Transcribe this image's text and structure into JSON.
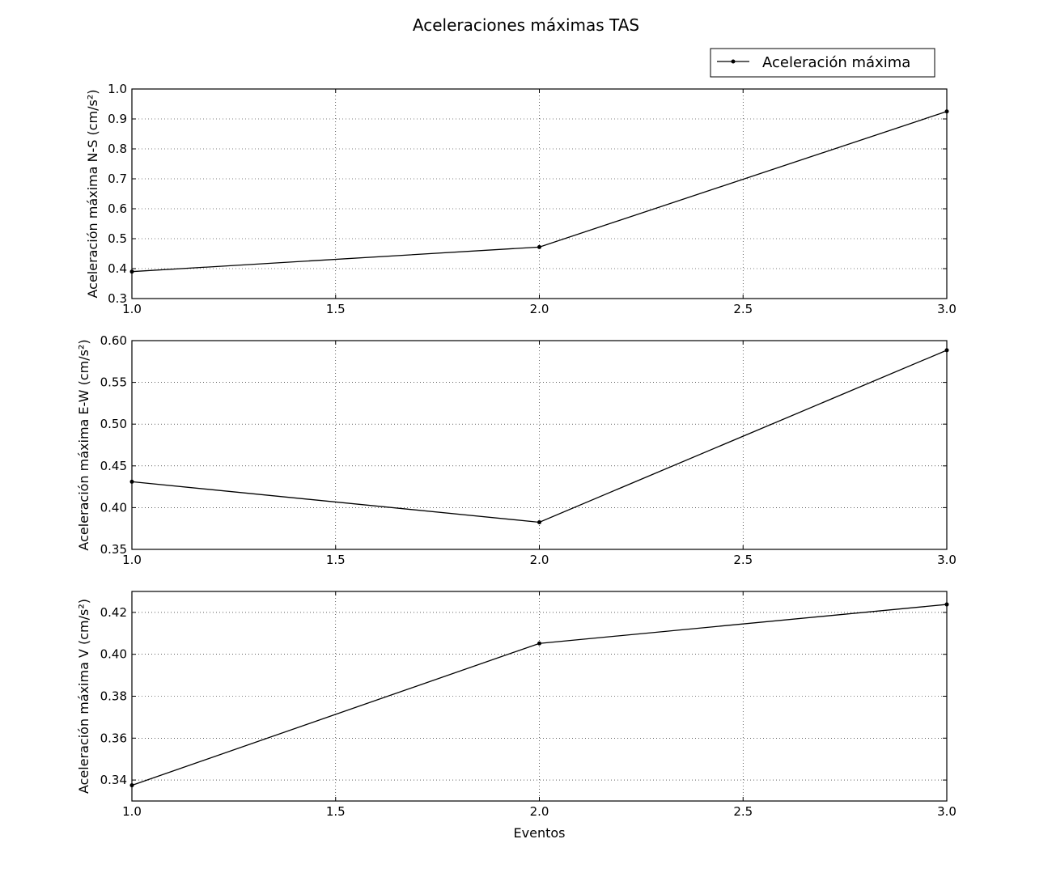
{
  "chart_data": {
    "type": "line",
    "title": "Aceleraciones máximas TAS",
    "legend": {
      "label": "Aceleración máxima",
      "placement": "top-right"
    },
    "xlabel": "Eventos",
    "line_color": "#000000",
    "grid": true,
    "subplots": [
      {
        "ylabel": "Aceleración máxima N-S (cm/s²)",
        "x": [
          1.0,
          2.0,
          3.0
        ],
        "y": [
          0.39,
          0.472,
          0.925
        ],
        "xlim": [
          1.0,
          3.0
        ],
        "ylim": [
          0.3,
          1.0
        ],
        "xticks": [
          "1.0",
          "1.5",
          "2.0",
          "2.5",
          "3.0"
        ],
        "yticks": [
          "0.3",
          "0.4",
          "0.5",
          "0.6",
          "0.7",
          "0.8",
          "0.9",
          "1.0"
        ]
      },
      {
        "ylabel": "Aceleración máxima E-W (cm/s²)",
        "x": [
          1.0,
          2.0,
          3.0
        ],
        "y": [
          0.431,
          0.3825,
          0.5885
        ],
        "xlim": [
          1.0,
          3.0
        ],
        "ylim": [
          0.35,
          0.6
        ],
        "xticks": [
          "1.0",
          "1.5",
          "2.0",
          "2.5",
          "3.0"
        ],
        "yticks": [
          "0.35",
          "0.40",
          "0.45",
          "0.50",
          "0.55",
          "0.60"
        ]
      },
      {
        "ylabel": "Aceleración máxima V (cm/s²)",
        "x": [
          1.0,
          2.0,
          3.0
        ],
        "y": [
          0.3375,
          0.4052,
          0.4238
        ],
        "xlim": [
          1.0,
          3.0
        ],
        "ylim": [
          0.33,
          0.43
        ],
        "xticks": [
          "1.0",
          "1.5",
          "2.0",
          "2.5",
          "3.0"
        ],
        "yticks": [
          "0.34",
          "0.36",
          "0.38",
          "0.40",
          "0.42"
        ]
      }
    ]
  }
}
